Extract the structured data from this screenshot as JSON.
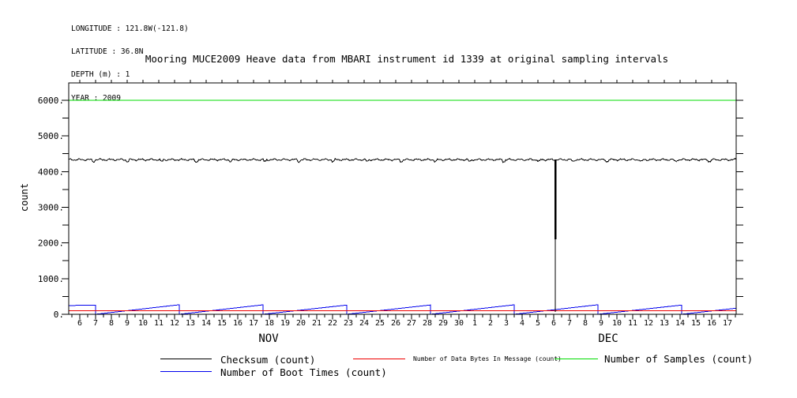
{
  "header": {
    "lines": [
      "LONGITUDE : 121.8W(-121.8)",
      "LATITUDE : 36.8N",
      "DEPTH (m) : 1",
      "YEAR : 2009"
    ]
  },
  "legend": {
    "items": [
      {
        "key": "checksum",
        "label": "Checksum (count)",
        "color": "#000000"
      },
      {
        "key": "data_bytes",
        "label": "Number of Data Bytes In Message (count)",
        "color": "#ee0000"
      },
      {
        "key": "samples",
        "label": "Number of Samples (count)",
        "color": "#00dd00"
      },
      {
        "key": "boot_times",
        "label": "Number of Boot Times (count)",
        "color": "#0000ee"
      }
    ]
  },
  "chart_data": {
    "type": "line",
    "title": "Mooring MUCE2009 Heave data from MBARI instrument id 1339 at original sampling intervals",
    "xlabel": "",
    "ylabel": "count",
    "xlim_days": [
      5.3,
      47.55
    ],
    "ylim": [
      0,
      6487
    ],
    "grid": false,
    "y_ticks": [
      {
        "value": 0,
        "label": "0."
      },
      {
        "value": 1000,
        "label": "1000."
      },
      {
        "value": 2000,
        "label": "2000."
      },
      {
        "value": 3000,
        "label": "3000."
      },
      {
        "value": 4000,
        "label": "4000."
      },
      {
        "value": 5000,
        "label": "5000."
      },
      {
        "value": 6000,
        "label": "6000."
      }
    ],
    "y_minor_step": 500,
    "x_minor_step": 0.5,
    "x_ticks": [
      {
        "day": 6,
        "label": "6"
      },
      {
        "day": 7,
        "label": "7"
      },
      {
        "day": 8,
        "label": "8"
      },
      {
        "day": 9,
        "label": "9"
      },
      {
        "day": 10,
        "label": "10"
      },
      {
        "day": 11,
        "label": "11"
      },
      {
        "day": 12,
        "label": "12"
      },
      {
        "day": 13,
        "label": "13"
      },
      {
        "day": 14,
        "label": "14"
      },
      {
        "day": 15,
        "label": "15"
      },
      {
        "day": 16,
        "label": "16"
      },
      {
        "day": 17,
        "label": "17"
      },
      {
        "day": 18,
        "label": "18"
      },
      {
        "day": 19,
        "label": "19"
      },
      {
        "day": 20,
        "label": "20"
      },
      {
        "day": 21,
        "label": "21"
      },
      {
        "day": 22,
        "label": "22"
      },
      {
        "day": 23,
        "label": "23"
      },
      {
        "day": 24,
        "label": "24"
      },
      {
        "day": 25,
        "label": "25"
      },
      {
        "day": 26,
        "label": "26"
      },
      {
        "day": 27,
        "label": "27"
      },
      {
        "day": 28,
        "label": "28"
      },
      {
        "day": 29,
        "label": "29"
      },
      {
        "day": 30,
        "label": "30"
      },
      {
        "day": 31,
        "label": "1"
      },
      {
        "day": 32,
        "label": "2"
      },
      {
        "day": 33,
        "label": "3"
      },
      {
        "day": 34,
        "label": "4"
      },
      {
        "day": 35,
        "label": "5"
      },
      {
        "day": 36,
        "label": "6"
      },
      {
        "day": 37,
        "label": "7"
      },
      {
        "day": 38,
        "label": "8"
      },
      {
        "day": 39,
        "label": "9"
      },
      {
        "day": 40,
        "label": "10"
      },
      {
        "day": 41,
        "label": "11"
      },
      {
        "day": 42,
        "label": "12"
      },
      {
        "day": 43,
        "label": "13"
      },
      {
        "day": 44,
        "label": "14"
      },
      {
        "day": 45,
        "label": "15"
      },
      {
        "day": 46,
        "label": "16"
      },
      {
        "day": 47,
        "label": "17"
      }
    ],
    "month_labels": [
      {
        "label": "NOV",
        "day": 17.95
      },
      {
        "label": "DEC",
        "day": 39.45
      }
    ],
    "series": [
      {
        "key": "samples",
        "name": "Number of Samples (count)",
        "color": "#00dd00",
        "points": [
          [
            5.3,
            6000
          ],
          [
            47.55,
            6000
          ]
        ]
      },
      {
        "key": "boot_times",
        "name": "Number of Boot Times (count)",
        "color": "#0000ee",
        "points": [
          [
            5.3,
            245
          ],
          [
            7.0,
            258
          ],
          [
            7.0,
            0
          ],
          [
            12.3,
            268
          ],
          [
            12.3,
            0
          ],
          [
            17.6,
            265
          ],
          [
            17.6,
            0
          ],
          [
            22.9,
            260
          ],
          [
            22.9,
            0
          ],
          [
            28.2,
            262
          ],
          [
            28.2,
            0
          ],
          [
            33.5,
            265
          ],
          [
            33.5,
            0
          ],
          [
            38.8,
            268
          ],
          [
            38.8,
            0
          ],
          [
            44.1,
            258
          ],
          [
            44.1,
            0
          ],
          [
            47.55,
            170
          ]
        ]
      },
      {
        "key": "data_bytes",
        "name": "Number of Data Bytes In Message (count)",
        "color": "#ee0000",
        "points": [
          [
            5.3,
            95
          ],
          [
            47.55,
            95
          ]
        ]
      },
      {
        "key": "checksum",
        "name": "Checksum (count)",
        "color": "#000000",
        "generator": {
          "type": "noisy",
          "base": 4335,
          "amplitude": 36,
          "step": 0.06,
          "spike": {
            "day": 36.1,
            "bottom": 70,
            "thick_to": 2100
          }
        }
      }
    ]
  }
}
